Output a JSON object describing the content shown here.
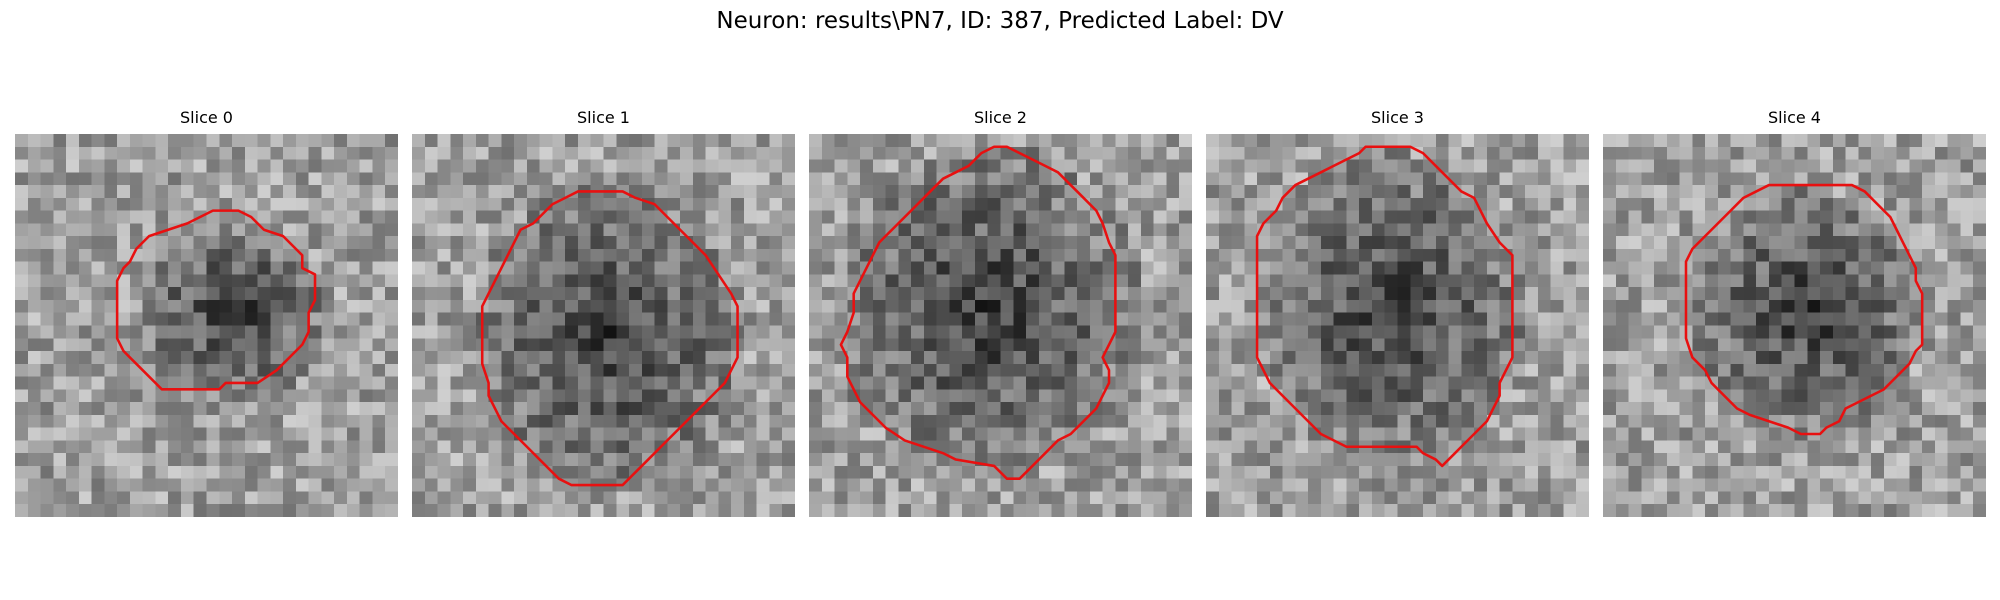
{
  "figure": {
    "title": "Neuron: results\\PN7, ID: 387, Predicted Label: DV"
  },
  "colors": {
    "contour": "#e81010",
    "background": "#ffffff"
  },
  "slices": [
    {
      "title": "Slice 0",
      "image": "grayscale-microscopy-patch",
      "contour": [
        [
          18.5,
          6.5
        ],
        [
          19.5,
          7.5
        ],
        [
          21,
          8
        ],
        [
          22.5,
          9.5
        ],
        [
          22.5,
          10.5
        ],
        [
          23.5,
          11
        ],
        [
          23.5,
          13
        ],
        [
          23,
          14
        ],
        [
          23,
          15.5
        ],
        [
          22.5,
          16.5
        ],
        [
          21.5,
          17.5
        ],
        [
          20.5,
          18.5
        ],
        [
          19,
          19.5
        ],
        [
          16.5,
          19.5
        ],
        [
          16,
          20
        ],
        [
          11.5,
          20
        ],
        [
          10.5,
          19
        ],
        [
          9.5,
          18
        ],
        [
          8.5,
          17
        ],
        [
          8,
          16
        ],
        [
          8,
          11.5
        ],
        [
          8.5,
          10.5
        ],
        [
          9,
          10
        ],
        [
          9.5,
          9
        ],
        [
          10.5,
          8
        ],
        [
          12,
          7.5
        ],
        [
          13.5,
          7
        ],
        [
          14.5,
          6.5
        ],
        [
          15.5,
          6
        ],
        [
          17.5,
          6
        ]
      ],
      "dark_blob": [
        17,
        14,
        6.5,
        6.5
      ]
    },
    {
      "title": "Slice 1",
      "image": "grayscale-microscopy-patch",
      "contour": [
        [
          16.5,
          4.5
        ],
        [
          17.5,
          5
        ],
        [
          19,
          5.5
        ],
        [
          20,
          6.5
        ],
        [
          21,
          7.5
        ],
        [
          22,
          8.5
        ],
        [
          23,
          9.5
        ],
        [
          24,
          11
        ],
        [
          25,
          12.5
        ],
        [
          25.5,
          13.5
        ],
        [
          25.5,
          17.5
        ],
        [
          25,
          18.5
        ],
        [
          24.5,
          19.5
        ],
        [
          23.5,
          20.5
        ],
        [
          22.5,
          21.5
        ],
        [
          21.5,
          22.5
        ],
        [
          20.5,
          23.5
        ],
        [
          19.5,
          24.5
        ],
        [
          18.5,
          25.5
        ],
        [
          17.5,
          26.5
        ],
        [
          16.5,
          27.5
        ],
        [
          12.5,
          27.5
        ],
        [
          11.5,
          27
        ],
        [
          11,
          26.5
        ],
        [
          10,
          25.5
        ],
        [
          9,
          24.5
        ],
        [
          8,
          23.5
        ],
        [
          7,
          22.5
        ],
        [
          6.5,
          21.5
        ],
        [
          6,
          20.5
        ],
        [
          6,
          19.5
        ],
        [
          5.5,
          18
        ],
        [
          5.5,
          13.5
        ],
        [
          6,
          12.5
        ],
        [
          6.5,
          11.5
        ],
        [
          7,
          10.5
        ],
        [
          7.5,
          9.5
        ],
        [
          8,
          8.5
        ],
        [
          8.5,
          7.5
        ],
        [
          9.5,
          7
        ],
        [
          10,
          6.5
        ],
        [
          11,
          5.5
        ],
        [
          12,
          5
        ],
        [
          13,
          4.5
        ]
      ],
      "dark_blob": [
        15.5,
        16,
        9.5,
        10.5
      ]
    },
    {
      "title": "Slice 2",
      "image": "grayscale-microscopy-patch",
      "contour": [
        [
          15.5,
          1
        ],
        [
          16.5,
          1.5
        ],
        [
          17.5,
          2
        ],
        [
          18.5,
          2.5
        ],
        [
          19.5,
          3
        ],
        [
          20.5,
          4
        ],
        [
          21.5,
          5
        ],
        [
          22.5,
          6
        ],
        [
          23,
          7
        ],
        [
          23.5,
          8.5
        ],
        [
          24,
          9.5
        ],
        [
          24,
          15.5
        ],
        [
          23.5,
          16.5
        ],
        [
          23,
          17.5
        ],
        [
          23.5,
          18.5
        ],
        [
          23.5,
          19.5
        ],
        [
          23,
          20.5
        ],
        [
          22.5,
          21.5
        ],
        [
          21.5,
          22.5
        ],
        [
          20.5,
          23.5
        ],
        [
          19.5,
          24
        ],
        [
          18.5,
          25
        ],
        [
          17.5,
          26
        ],
        [
          16.5,
          27
        ],
        [
          15.5,
          27
        ],
        [
          15,
          26.5
        ],
        [
          14.5,
          26
        ],
        [
          11.5,
          25.5
        ],
        [
          10.5,
          25
        ],
        [
          9,
          24.5
        ],
        [
          7.5,
          24
        ],
        [
          6,
          23
        ],
        [
          5,
          22
        ],
        [
          4,
          21
        ],
        [
          3.5,
          20
        ],
        [
          3,
          19
        ],
        [
          3,
          17.5
        ],
        [
          2.5,
          16.5
        ],
        [
          3,
          15.5
        ],
        [
          3.5,
          14
        ],
        [
          3.5,
          12.5
        ],
        [
          4,
          11.5
        ],
        [
          4.5,
          10.5
        ],
        [
          5,
          9.5
        ],
        [
          5.5,
          8.5
        ],
        [
          6.5,
          7.5
        ],
        [
          7.5,
          6.5
        ],
        [
          8.5,
          5.5
        ],
        [
          9.5,
          4.5
        ],
        [
          10.5,
          3.5
        ],
        [
          11.5,
          3
        ],
        [
          12.5,
          2.5
        ],
        [
          13.5,
          1.5
        ],
        [
          14.5,
          1
        ]
      ],
      "dark_blob": [
        14,
        14,
        10.5,
        11.5
      ]
    },
    {
      "title": "Slice 3",
      "image": "grayscale-microscopy-patch",
      "contour": [
        [
          12.5,
          1
        ],
        [
          16,
          1
        ],
        [
          17,
          1.5
        ],
        [
          18,
          2.5
        ],
        [
          19,
          3.5
        ],
        [
          20,
          4.5
        ],
        [
          21,
          5
        ],
        [
          21.5,
          6
        ],
        [
          22,
          7
        ],
        [
          23,
          8.5
        ],
        [
          24,
          9.5
        ],
        [
          24,
          17.5
        ],
        [
          23.5,
          18.5
        ],
        [
          23,
          19.5
        ],
        [
          23,
          20.5
        ],
        [
          22.5,
          21.5
        ],
        [
          22,
          22.5
        ],
        [
          21,
          23.5
        ],
        [
          20,
          24.5
        ],
        [
          19.5,
          25
        ],
        [
          18.5,
          26
        ],
        [
          18,
          25.5
        ],
        [
          17,
          25
        ],
        [
          16.5,
          24.5
        ],
        [
          11,
          24.5
        ],
        [
          10,
          24
        ],
        [
          9,
          23.5
        ],
        [
          8,
          22.5
        ],
        [
          7,
          21.5
        ],
        [
          6,
          20.5
        ],
        [
          5,
          19.5
        ],
        [
          4.5,
          18.5
        ],
        [
          4,
          17.5
        ],
        [
          4,
          8
        ],
        [
          4.5,
          7
        ],
        [
          5.5,
          6
        ],
        [
          6,
          5
        ],
        [
          7,
          4
        ],
        [
          8,
          3.5
        ],
        [
          9,
          3
        ],
        [
          10,
          2.5
        ],
        [
          11,
          2
        ],
        [
          12,
          1.5
        ]
      ],
      "dark_blob": [
        14.5,
        13.5,
        9.5,
        10.5
      ]
    },
    {
      "title": "Slice 4",
      "image": "grayscale-microscopy-patch",
      "contour": [
        [
          14,
          4
        ],
        [
          19.5,
          4
        ],
        [
          20.5,
          4.5
        ],
        [
          21.5,
          5.5
        ],
        [
          22.5,
          6.5
        ],
        [
          23,
          7.5
        ],
        [
          23.5,
          8.5
        ],
        [
          24,
          9.5
        ],
        [
          24.5,
          10.5
        ],
        [
          24.5,
          11.5
        ],
        [
          25,
          12.5
        ],
        [
          25,
          16.5
        ],
        [
          24.5,
          17
        ],
        [
          24,
          18
        ],
        [
          23,
          19
        ],
        [
          22,
          20
        ],
        [
          21,
          20.5
        ],
        [
          20,
          21
        ],
        [
          19,
          21.5
        ],
        [
          18.5,
          22.5
        ],
        [
          17.5,
          23
        ],
        [
          17,
          23.5
        ],
        [
          15.5,
          23.5
        ],
        [
          14.5,
          23
        ],
        [
          13,
          22.5
        ],
        [
          11.5,
          22
        ],
        [
          10.5,
          21.5
        ],
        [
          9.5,
          20.5
        ],
        [
          8.5,
          19.5
        ],
        [
          8,
          18.5
        ],
        [
          7,
          17.5
        ],
        [
          6.5,
          16
        ],
        [
          6.5,
          10
        ],
        [
          7,
          9
        ],
        [
          8,
          8
        ],
        [
          9,
          7
        ],
        [
          10,
          6
        ],
        [
          11,
          5
        ],
        [
          12,
          4.5
        ],
        [
          13,
          4
        ]
      ],
      "dark_blob": [
        16,
        14,
        8,
        8.5
      ]
    }
  ]
}
